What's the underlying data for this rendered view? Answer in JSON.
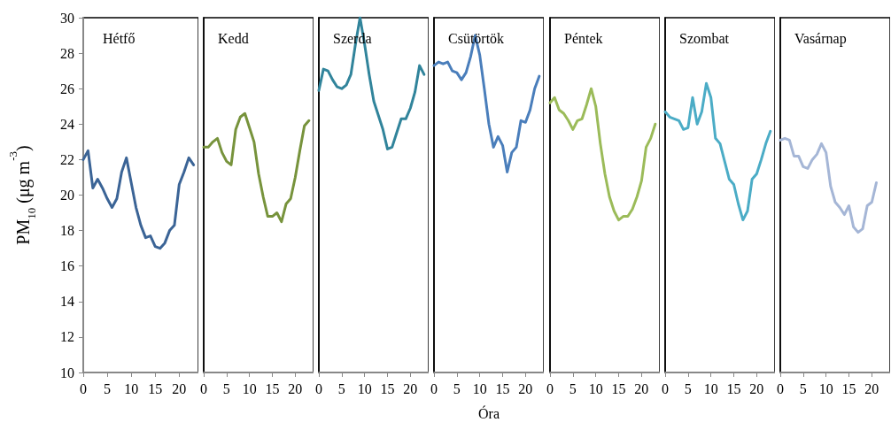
{
  "chart_data": [
    {
      "type": "line",
      "title": "Hétfő",
      "ylabel": "PM$_{10}$ (μg m$^{-3}$)",
      "x": [
        0,
        1,
        2,
        3,
        4,
        5,
        6,
        7,
        8,
        9,
        10,
        11,
        12,
        13,
        14,
        15,
        16,
        17,
        18,
        19,
        20,
        21,
        22,
        23
      ],
      "xlim": [
        0,
        24
      ],
      "xticks": [
        0,
        5,
        10,
        15,
        20
      ],
      "ylim": [
        10,
        30
      ],
      "yticks": [
        10,
        12,
        14,
        16,
        18,
        20,
        22,
        24,
        26,
        28,
        30
      ],
      "marker": "none",
      "grid": false,
      "series": [
        {
          "color": "#3b6496",
          "values": [
            22.0,
            22.5,
            20.4,
            20.9,
            20.4,
            19.8,
            19.3,
            19.8,
            21.3,
            22.1,
            20.7,
            19.3,
            18.3,
            17.6,
            17.7,
            17.1,
            17.0,
            17.3,
            18.0,
            18.3,
            20.6,
            21.3,
            22.1,
            21.7
          ]
        }
      ]
    },
    {
      "type": "line",
      "title": "Kedd",
      "x": [
        0,
        1,
        2,
        3,
        4,
        5,
        6,
        7,
        8,
        9,
        10,
        11,
        12,
        13,
        14,
        15,
        16,
        17,
        18,
        19,
        20,
        21,
        22,
        23
      ],
      "xlim": [
        0,
        24
      ],
      "xticks": [
        0,
        5,
        10,
        15,
        20
      ],
      "ylim": [
        10,
        30
      ],
      "yticks": [
        10,
        12,
        14,
        16,
        18,
        20,
        22,
        24,
        26,
        28,
        30
      ],
      "marker": "none",
      "grid": false,
      "tick_labels": "x",
      "series": [
        {
          "color": "#77933c",
          "values": [
            22.7,
            22.7,
            23.0,
            23.2,
            22.4,
            21.9,
            21.7,
            23.7,
            24.4,
            24.6,
            23.8,
            23.0,
            21.2,
            19.9,
            18.8,
            18.8,
            19.0,
            18.5,
            19.5,
            19.8,
            21.0,
            22.5,
            23.9,
            24.2
          ]
        }
      ]
    },
    {
      "type": "line",
      "title": "Szerda",
      "x": [
        0,
        1,
        2,
        3,
        4,
        5,
        6,
        7,
        8,
        9,
        10,
        11,
        12,
        13,
        14,
        15,
        16,
        17,
        18,
        19,
        20,
        21,
        22,
        23
      ],
      "xlim": [
        0,
        24
      ],
      "xticks": [
        0,
        5,
        10,
        15,
        20
      ],
      "ylim": [
        10,
        30
      ],
      "yticks": [
        10,
        12,
        14,
        16,
        18,
        20,
        22,
        24,
        26,
        28,
        30
      ],
      "marker": "none",
      "grid": false,
      "tick_labels": "x",
      "series": [
        {
          "color": "#31849b",
          "values": [
            25.9,
            27.1,
            27.0,
            26.5,
            26.1,
            26.0,
            26.2,
            26.8,
            28.5,
            30.0,
            28.5,
            26.8,
            25.3,
            24.5,
            23.7,
            22.6,
            22.7,
            23.5,
            24.3,
            24.3,
            24.9,
            25.8,
            27.3,
            26.8
          ]
        }
      ]
    },
    {
      "type": "line",
      "title": "Csütörtök",
      "xlabel": "Óra",
      "x": [
        0,
        1,
        2,
        3,
        4,
        5,
        6,
        7,
        8,
        9,
        10,
        11,
        12,
        13,
        14,
        15,
        16,
        17,
        18,
        19,
        20,
        21,
        22,
        23
      ],
      "xlim": [
        0,
        24
      ],
      "xticks": [
        0,
        5,
        10,
        15,
        20
      ],
      "ylim": [
        10,
        30
      ],
      "yticks": [
        10,
        12,
        14,
        16,
        18,
        20,
        22,
        24,
        26,
        28,
        30
      ],
      "marker": "none",
      "grid": false,
      "tick_labels": "x",
      "series": [
        {
          "color": "#4a7ebb",
          "values": [
            27.3,
            27.5,
            27.4,
            27.5,
            27.0,
            26.9,
            26.5,
            26.9,
            27.8,
            29.0,
            27.9,
            26.0,
            24.0,
            22.7,
            23.3,
            22.8,
            21.3,
            22.4,
            22.7,
            24.2,
            24.1,
            24.8,
            26.0,
            26.7
          ]
        }
      ]
    },
    {
      "type": "line",
      "title": "Péntek",
      "x": [
        0,
        1,
        2,
        3,
        4,
        5,
        6,
        7,
        8,
        9,
        10,
        11,
        12,
        13,
        14,
        15,
        16,
        17,
        18,
        19,
        20,
        21,
        22,
        23
      ],
      "xlim": [
        0,
        24
      ],
      "xticks": [
        0,
        5,
        10,
        15,
        20
      ],
      "ylim": [
        10,
        30
      ],
      "yticks": [
        10,
        12,
        14,
        16,
        18,
        20,
        22,
        24,
        26,
        28,
        30
      ],
      "marker": "none",
      "grid": false,
      "tick_labels": "x",
      "series": [
        {
          "color": "#9bbb59",
          "values": [
            25.2,
            25.5,
            24.8,
            24.6,
            24.2,
            23.7,
            24.2,
            24.3,
            25.1,
            26.0,
            25.0,
            22.9,
            21.2,
            19.9,
            19.1,
            18.6,
            18.8,
            18.8,
            19.2,
            19.9,
            20.8,
            22.7,
            23.2,
            24.0
          ]
        }
      ]
    },
    {
      "type": "line",
      "title": "Szombat",
      "x": [
        0,
        1,
        2,
        3,
        4,
        5,
        6,
        7,
        8,
        9,
        10,
        11,
        12,
        13,
        14,
        15,
        16,
        17,
        18,
        19,
        20,
        21,
        22,
        23
      ],
      "xlim": [
        0,
        24
      ],
      "xticks": [
        0,
        5,
        10,
        15,
        20
      ],
      "ylim": [
        10,
        30
      ],
      "yticks": [
        10,
        12,
        14,
        16,
        18,
        20,
        22,
        24,
        26,
        28,
        30
      ],
      "marker": "none",
      "grid": false,
      "tick_labels": "x",
      "series": [
        {
          "color": "#4bacc6",
          "values": [
            24.7,
            24.4,
            24.3,
            24.2,
            23.7,
            23.8,
            25.5,
            24.0,
            24.7,
            26.3,
            25.5,
            23.2,
            22.9,
            21.9,
            20.9,
            20.6,
            19.5,
            18.6,
            19.1,
            20.9,
            21.2,
            22.0,
            22.9,
            23.6
          ]
        }
      ]
    },
    {
      "type": "line",
      "title": "Vasárnap",
      "x": [
        0,
        1,
        2,
        3,
        4,
        5,
        6,
        7,
        8,
        9,
        10,
        11,
        12,
        13,
        14,
        15,
        16,
        17,
        18,
        19,
        20,
        21
      ],
      "xlim": [
        0,
        24
      ],
      "xticks": [
        0,
        5,
        10,
        15,
        20
      ],
      "ylim": [
        10,
        30
      ],
      "yticks": [
        10,
        12,
        14,
        16,
        18,
        20,
        22,
        24,
        26,
        28,
        30
      ],
      "marker": "none",
      "grid": false,
      "tick_labels": "x",
      "series": [
        {
          "color": "#a5b6d6",
          "values": [
            23.1,
            23.2,
            23.1,
            22.2,
            22.2,
            21.6,
            21.5,
            22.0,
            22.3,
            22.9,
            22.4,
            20.5,
            19.6,
            19.3,
            18.9,
            19.4,
            18.2,
            17.9,
            18.1,
            19.4,
            19.6,
            20.7
          ]
        }
      ]
    }
  ]
}
